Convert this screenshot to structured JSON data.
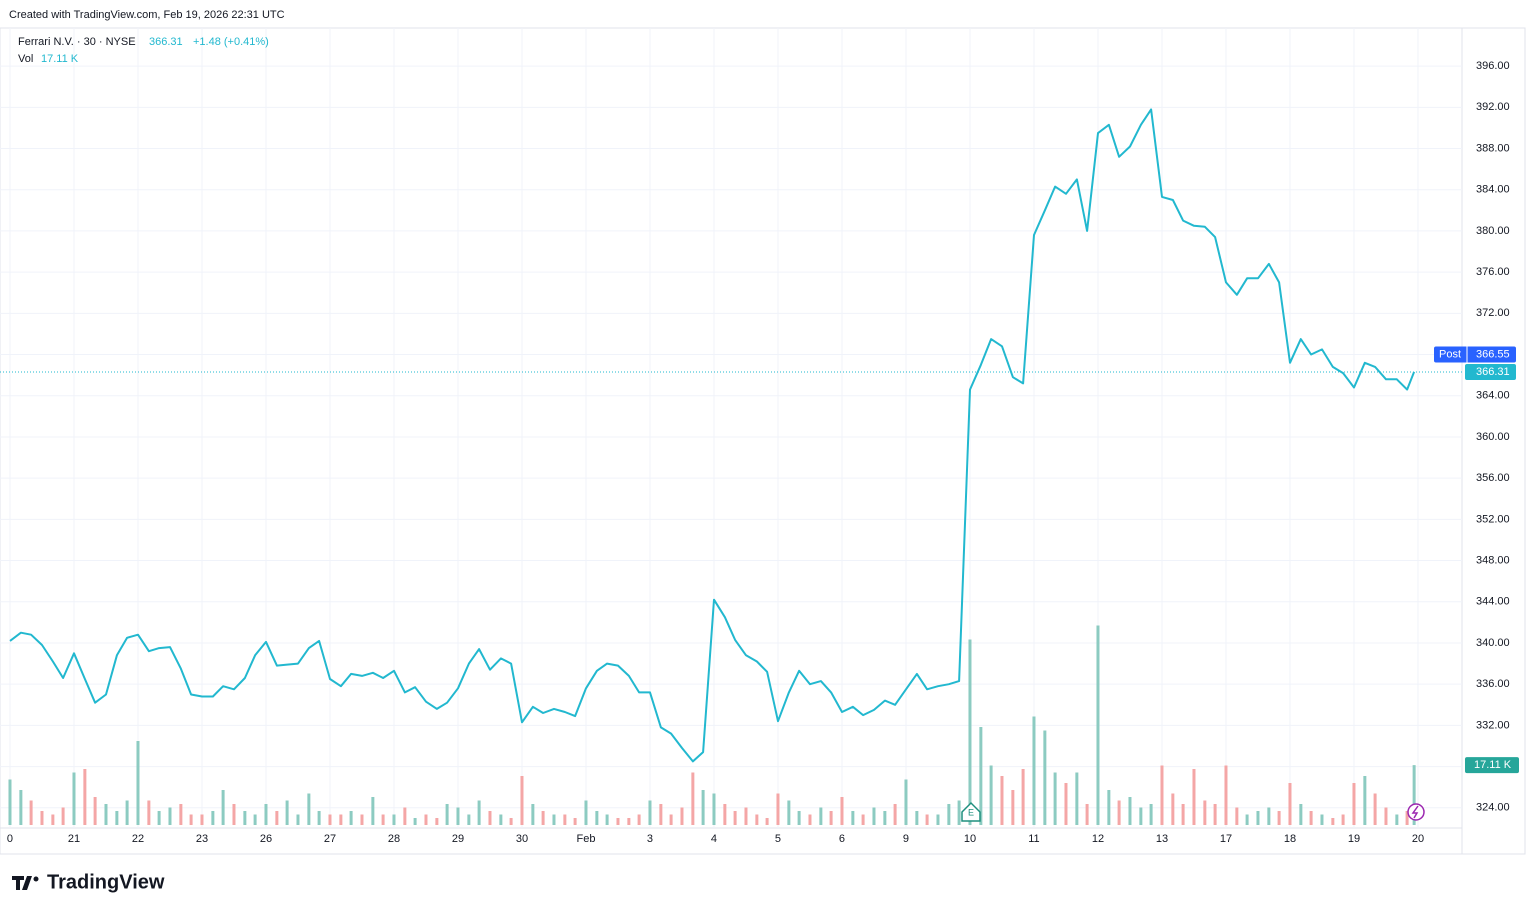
{
  "created_note": "Created with TradingView.com, Feb 19, 2026 22:31 UTC",
  "legend": {
    "symbol": "Ferrari N.V. · 30 · NYSE",
    "change": "+1.48 (+0.41%)"
  },
  "brand": "TradingView",
  "chart_data": {
    "type": "line",
    "last_price": {
      "value": 366.31,
      "label": "366.31"
    },
    "post_price": {
      "name": "Post",
      "value": 366.55,
      "label": "366.55"
    },
    "x": [
      0,
      0.17,
      0.33,
      0.5,
      0.67,
      0.83,
      1,
      1.17,
      1.33,
      1.5,
      1.67,
      1.83,
      2,
      2.17,
      2.33,
      2.5,
      2.67,
      2.83,
      3,
      3.17,
      3.33,
      3.5,
      3.67,
      3.83,
      4,
      4.17,
      4.33,
      4.5,
      4.67,
      4.83,
      5,
      5.17,
      5.33,
      5.5,
      5.67,
      5.83,
      6,
      6.17,
      6.33,
      6.5,
      6.67,
      6.83,
      7,
      7.17,
      7.33,
      7.5,
      7.67,
      7.83,
      8,
      8.17,
      8.33,
      8.5,
      8.67,
      8.83,
      9,
      9.17,
      9.33,
      9.5,
      9.67,
      9.83,
      10,
      10.17,
      10.33,
      10.5,
      10.67,
      10.83,
      11,
      11.17,
      11.33,
      11.5,
      11.67,
      11.83,
      12,
      12.17,
      12.33,
      12.5,
      12.67,
      12.83,
      13,
      13.17,
      13.33,
      13.5,
      13.67,
      13.83,
      14,
      14.17,
      14.33,
      14.5,
      14.67,
      14.83,
      15,
      15.17,
      15.33,
      15.5,
      15.67,
      15.83,
      16,
      16.17,
      16.33,
      16.5,
      16.67,
      16.83,
      17,
      17.17,
      17.33,
      17.5,
      17.67,
      17.83,
      18,
      18.17,
      18.33,
      18.5,
      18.67,
      18.83,
      19,
      19.17,
      19.33,
      19.5,
      19.67,
      19.83,
      20,
      20.17,
      20.33,
      20.5,
      20.67,
      20.83,
      21,
      21.17,
      21.33,
      21.5,
      21.67,
      21.83,
      21.94
    ],
    "series": [
      {
        "name": "Ferrari N.V.",
        "color": "#22b8cf",
        "values": [
          340.2,
          341,
          340.8,
          339.8,
          338.2,
          336.6,
          339,
          336.5,
          334.2,
          335,
          338.8,
          340.5,
          340.8,
          339.2,
          339.5,
          339.6,
          337.5,
          335.0,
          334.8,
          334.8,
          335.8,
          335.5,
          336.6,
          338.8,
          340.1,
          337.8,
          337.9,
          338,
          339.5,
          340.2,
          336.5,
          335.8,
          337,
          336.8,
          337.1,
          336.6,
          337.3,
          335.2,
          335.7,
          334.3,
          333.6,
          334.2,
          335.6,
          338.0,
          339.4,
          337.4,
          338.5,
          338.0,
          332.3,
          333.8,
          333.2,
          333.6,
          333.3,
          332.9,
          335.6,
          337.3,
          338.0,
          337.8,
          336.8,
          335.2,
          335.2,
          331.8,
          331.2,
          329.8,
          328.5,
          329.4,
          344.2,
          342.5,
          340.3,
          338.8,
          338.2,
          337.2,
          332.4,
          335.2,
          337.3,
          336.0,
          336.3,
          335.2,
          333.3,
          333.8,
          333.0,
          333.5,
          334.4,
          334.0,
          335.5,
          337.0,
          335.5,
          335.8,
          336.0,
          336.3,
          364.6,
          367,
          369.5,
          368.8,
          365.8,
          365.2,
          379.6,
          382.0,
          384.3,
          383.6,
          385.0,
          380.0,
          389.5,
          390.3,
          387.2,
          388.2,
          390.3,
          391.8,
          383.3,
          383.0,
          381.0,
          380.5,
          380.4,
          379.4,
          375.0,
          373.8,
          375.4,
          375.4,
          376.8,
          375.0,
          367.2,
          369.5,
          368.0,
          368.5,
          366.8,
          366.2,
          364.8,
          367.2,
          366.8,
          365.6,
          365.6,
          364.6,
          366.31
        ]
      }
    ],
    "volume": {
      "name": "Vol",
      "up_color": "#8ccbc1",
      "down_color": "#f4a6a6",
      "last_value_label": "17.11 K",
      "values": [
        13,
        10,
        7,
        4,
        3,
        5,
        15,
        16,
        8,
        6,
        4,
        7,
        24,
        7,
        4,
        5,
        6,
        3,
        3,
        4,
        10,
        6,
        4,
        3,
        6,
        4,
        7,
        3,
        9,
        4,
        3,
        3,
        4,
        3,
        8,
        3,
        3,
        5,
        2,
        3,
        2,
        6,
        5,
        3,
        7,
        4,
        3,
        2,
        14,
        6,
        4,
        3,
        3,
        2,
        7,
        4,
        3,
        2,
        2,
        3,
        7,
        6,
        3,
        5,
        15,
        10,
        9,
        6,
        4,
        5,
        3,
        2,
        9,
        7,
        4,
        3,
        5,
        4,
        8,
        4,
        3,
        5,
        4,
        6,
        13,
        4,
        3,
        3,
        6,
        7,
        53,
        28,
        17,
        14,
        10,
        16,
        31,
        27,
        15,
        12,
        15,
        6,
        57,
        10,
        7,
        8,
        5,
        6,
        17,
        9,
        6,
        16,
        7,
        6,
        17,
        5,
        3,
        4,
        5,
        4,
        12,
        6,
        4,
        3,
        2,
        3,
        12,
        14,
        9,
        5,
        3,
        4,
        17.11
      ]
    },
    "xlim": [
      -0.156,
      22.688
    ],
    "ylim": [
      319.9,
      399.7
    ],
    "xticks": [
      {
        "value": 0,
        "label": "0"
      },
      {
        "value": 1,
        "label": "21"
      },
      {
        "value": 2,
        "label": "22"
      },
      {
        "value": 3,
        "label": "23"
      },
      {
        "value": 4,
        "label": "26"
      },
      {
        "value": 5,
        "label": "27"
      },
      {
        "value": 6,
        "label": "28"
      },
      {
        "value": 7,
        "label": "29"
      },
      {
        "value": 8,
        "label": "30"
      },
      {
        "value": 9,
        "label": "Feb"
      },
      {
        "value": 10,
        "label": "3"
      },
      {
        "value": 11,
        "label": "4"
      },
      {
        "value": 12,
        "label": "5"
      },
      {
        "value": 13,
        "label": "6"
      },
      {
        "value": 14,
        "label": "9"
      },
      {
        "value": 15,
        "label": "10"
      },
      {
        "value": 16,
        "label": "11"
      },
      {
        "value": 17,
        "label": "12"
      },
      {
        "value": 18,
        "label": "13"
      },
      {
        "value": 19,
        "label": "17"
      },
      {
        "value": 20,
        "label": "18"
      },
      {
        "value": 21,
        "label": "19"
      },
      {
        "value": 22,
        "label": "20"
      }
    ],
    "yticks": [
      {
        "value": 324,
        "label": "324.00"
      },
      {
        "value": 328,
        "label": "328.00"
      },
      {
        "value": 332,
        "label": "332.00"
      },
      {
        "value": 336,
        "label": "336.00"
      },
      {
        "value": 340,
        "label": "340.00"
      },
      {
        "value": 344,
        "label": "344.00"
      },
      {
        "value": 348,
        "label": "348.00"
      },
      {
        "value": 352,
        "label": "352.00"
      },
      {
        "value": 356,
        "label": "356.00"
      },
      {
        "value": 360,
        "label": "360.00"
      },
      {
        "value": 364,
        "label": "364.00"
      },
      {
        "value": 368,
        "label": "368.00"
      },
      {
        "value": 372,
        "label": "372.00"
      },
      {
        "value": 376,
        "label": "376.00"
      },
      {
        "value": 380,
        "label": "380.00"
      },
      {
        "value": 384,
        "label": "384.00"
      },
      {
        "value": 388,
        "label": "388.00"
      },
      {
        "value": 392,
        "label": "392.00"
      },
      {
        "value": 396,
        "label": "396.00"
      }
    ],
    "grid": true
  }
}
